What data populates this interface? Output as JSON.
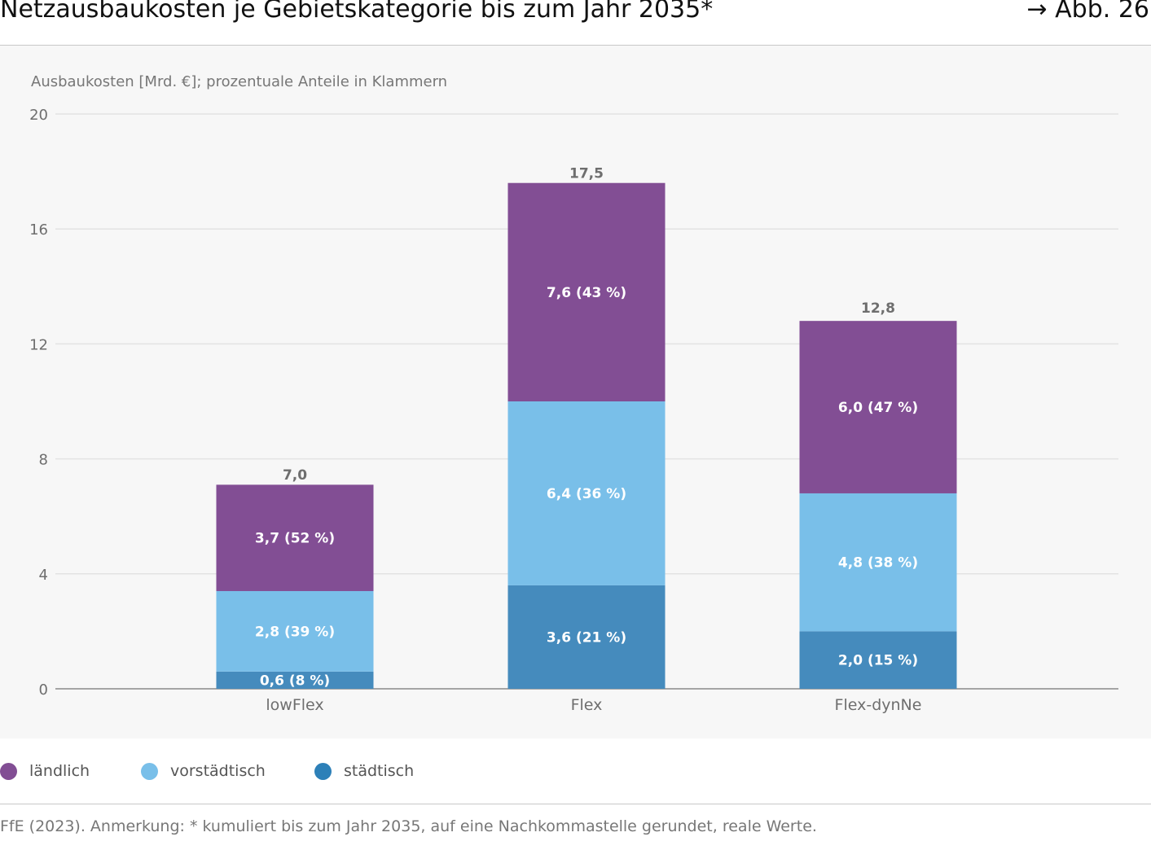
{
  "header": {
    "title": "Netzausbaukosten je Gebietskategorie bis zum Jahr 2035*",
    "figure_ref": "→ Abb. 26"
  },
  "chart_data": {
    "type": "bar",
    "stacked": true,
    "ylabel": "Ausbaukosten [Mrd. €]; prozentuale Anteile in Klammern",
    "categories": [
      "lowFlex",
      "Flex",
      "Flex-dynNe"
    ],
    "ylim": [
      0,
      20
    ],
    "yticks": [
      0,
      4,
      8,
      12,
      16,
      20
    ],
    "ytick_labels": [
      "0",
      "4",
      "8",
      "12",
      "16",
      "20"
    ],
    "grid": true,
    "series": [
      {
        "name": "städtisch",
        "color": "#458bbd",
        "values": [
          0.6,
          3.6,
          2.0
        ],
        "labels": [
          "0,6 (8 %)",
          "3,6 (21 %)",
          "2,0 (15 %)"
        ]
      },
      {
        "name": "vorstädtisch",
        "color": "#79bfe9",
        "values": [
          2.8,
          6.4,
          4.8
        ],
        "labels": [
          "2,8 (39 %)",
          "6,4 (36 %)",
          "4,8 (38 %)"
        ]
      },
      {
        "name": "ländlich",
        "color": "#824e94",
        "values": [
          3.7,
          7.6,
          6.0
        ],
        "labels": [
          "3,7 (52 %)",
          "7,6 (43 %)",
          "6,0 (47 %)"
        ]
      }
    ],
    "totals": [
      7.0,
      17.5,
      12.8
    ],
    "total_labels": [
      "7,0",
      "17,5",
      "12,8"
    ]
  },
  "legend": {
    "items": [
      {
        "label": "ländlich",
        "color": "#824e94"
      },
      {
        "label": "vorstädtisch",
        "color": "#79bfe9"
      },
      {
        "label": "städtisch",
        "color": "#2d80b8"
      }
    ]
  },
  "footer": {
    "source": "FfE (2023). Anmerkung: * kumuliert bis zum Jahr 2035, auf eine Nachkommastelle gerundet, reale Werte."
  }
}
